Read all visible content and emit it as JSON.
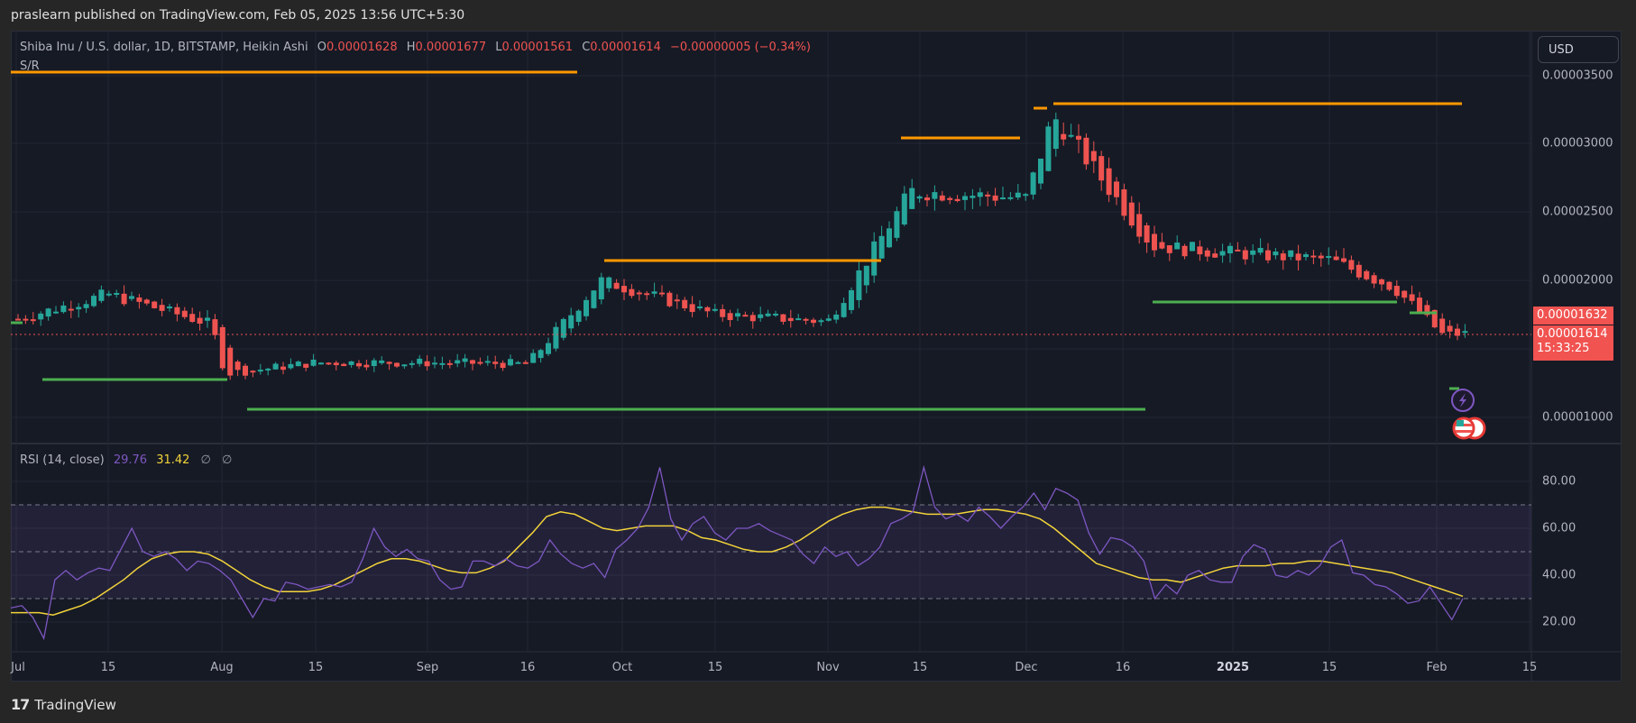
{
  "header": {
    "published": "praslearn published on TradingView.com, Feb 05, 2025 13:56 UTC+5:30"
  },
  "legend": {
    "symbol": "Shiba Inu / U.S. dollar, 1D, BITSTAMP, Heikin Ashi",
    "o_label": "O",
    "open": "0.00001628",
    "h_label": "H",
    "high": "0.00001677",
    "l_label": "L",
    "low": "0.00001561",
    "c_label": "C",
    "close": "0.00001614",
    "change": "−0.00000005 (−0.34%)",
    "indicator": "S/R"
  },
  "currency_button": "USD",
  "price_axis": {
    "labels": [
      "0.00003500",
      "0.00003000",
      "0.00002500",
      "0.00002000",
      "0.00001000"
    ],
    "tag_prev": "0.00001632",
    "tag_last": "0.00001614",
    "countdown": "15:33:25"
  },
  "rsi": {
    "title": "RSI (14, close)",
    "value": "29.76",
    "ma_value": "31.42",
    "null1": "∅",
    "null2": "∅",
    "axis_labels": [
      "80.00",
      "60.00",
      "40.00",
      "20.00"
    ]
  },
  "time_axis": [
    "Jul",
    "15",
    "Aug",
    "15",
    "Sep",
    "16",
    "Oct",
    "15",
    "Nov",
    "15",
    "Dec",
    "16",
    "2025",
    "15",
    "Feb",
    "15"
  ],
  "footer": {
    "logo": "17",
    "brand": "TradingView"
  },
  "colors": {
    "up": "#26a69a",
    "down": "#ef5350",
    "resistance": "#ff9800",
    "support": "#4caf50",
    "rsi": "#7e57c2",
    "rsi_ma": "#f2d33a",
    "bg": "#161a25"
  },
  "chart_data": {
    "type": "candlestick",
    "title": "Shiba Inu / U.S. dollar, 1D, BITSTAMP, Heikin Ashi",
    "x_ticks": [
      "Jul",
      "15",
      "Aug",
      "15",
      "Sep",
      "16",
      "Oct",
      "15",
      "Nov",
      "15",
      "Dec",
      "16",
      "2025",
      "15",
      "Feb",
      "15"
    ],
    "y_ticks": [
      3.5e-05,
      3e-05,
      2.5e-05,
      2e-05,
      1e-05
    ],
    "ylim": [
      8.7e-06,
      3.68e-05
    ],
    "last_close": 1.614e-05,
    "ohlc_last": {
      "open": 1.628e-05,
      "high": 1.677e-05,
      "low": 1.561e-05,
      "close": 1.614e-05
    },
    "approx_closes": [
      {
        "date": "Jul",
        "price": 1.72e-05
      },
      {
        "date": "Jul 15",
        "price": 1.9e-05
      },
      {
        "date": "Aug 1",
        "price": 1.68e-05
      },
      {
        "date": "Aug 5",
        "price": 1.32e-05
      },
      {
        "date": "Aug 15",
        "price": 1.4e-05
      },
      {
        "date": "Sep 1",
        "price": 1.4e-05
      },
      {
        "date": "Sep 16",
        "price": 1.39e-05
      },
      {
        "date": "Sep 28",
        "price": 2e-05
      },
      {
        "date": "Oct 15",
        "price": 1.75e-05
      },
      {
        "date": "Nov 1",
        "price": 1.7e-05
      },
      {
        "date": "Nov 12",
        "price": 2.65e-05
      },
      {
        "date": "Dec 1",
        "price": 2.6e-05
      },
      {
        "date": "Dec 8",
        "price": 3.2e-05
      },
      {
        "date": "Dec 20",
        "price": 2.25e-05
      },
      {
        "date": "2025",
        "price": 2.2e-05
      },
      {
        "date": "Jan 15",
        "price": 2.15e-05
      },
      {
        "date": "Jan 27",
        "price": 1.95e-05
      },
      {
        "date": "Feb 3",
        "price": 1.6e-05
      },
      {
        "date": "Feb 5",
        "price": 1.61e-05
      }
    ],
    "sr_lines": {
      "resistance": [
        {
          "from": "Jul",
          "to": "Aug 28",
          "price": 3.62e-05
        },
        {
          "from": "Sep 28",
          "to": "Nov 10",
          "price": 2.15e-05
        },
        {
          "from": "Nov 12",
          "to": "Nov 28",
          "price": 3.04e-05
        },
        {
          "from": "Dec 1",
          "to": "Dec 2",
          "price": 3.27e-05
        },
        {
          "from": "Dec 3",
          "to": "Jan 30",
          "price": 3.29e-05
        }
      ],
      "support": [
        {
          "from": "Jul 5",
          "to": "Aug 1",
          "price": 1.3e-05
        },
        {
          "from": "Aug 5",
          "to": "Dec 18",
          "price": 1.06e-05
        },
        {
          "from": "Dec 20",
          "to": "Jan 27",
          "price": 1.84e-05
        },
        {
          "from": "Jan 28",
          "to": "Jan 31",
          "price": 1.76e-05
        }
      ]
    },
    "indicator": {
      "type": "line",
      "name": "RSI (14, close)",
      "ylim": [
        10,
        92
      ],
      "bands": [
        30,
        50,
        70
      ],
      "rsi_last": 29.76,
      "ma_last": 31.42,
      "rsi_points": [
        26,
        27,
        22,
        13,
        38,
        42,
        38,
        41,
        43,
        42,
        51,
        60,
        50,
        48,
        50,
        47,
        42,
        46,
        45,
        42,
        38,
        30,
        22,
        30,
        29,
        37,
        36,
        34,
        35,
        36,
        35,
        37,
        47,
        60,
        52,
        48,
        51,
        47,
        46,
        38,
        34,
        35,
        46,
        46,
        44,
        47,
        44,
        43,
        46,
        55,
        49,
        45,
        43,
        45,
        39,
        51,
        55,
        60,
        69,
        86,
        64,
        55,
        62,
        65,
        58,
        55,
        60,
        60,
        62,
        59,
        57,
        55,
        49,
        45,
        52,
        48,
        50,
        44,
        47,
        52,
        62,
        64,
        67,
        86,
        69,
        64,
        66,
        63,
        69,
        65,
        60,
        65,
        69,
        75,
        68,
        77,
        75,
        72,
        58,
        49,
        56,
        55,
        52,
        46,
        30,
        36,
        32,
        40,
        42,
        38,
        37,
        37,
        48,
        53,
        51,
        40,
        39,
        42,
        40,
        44,
        52,
        55,
        41,
        40,
        36,
        35,
        32,
        28,
        29,
        35,
        28,
        21,
        30
      ],
      "ma_points": [
        24,
        24,
        24,
        23,
        25,
        27,
        30,
        34,
        38,
        43,
        47,
        49,
        50,
        50,
        49,
        46,
        42,
        38,
        35,
        33,
        33,
        33,
        34,
        36,
        39,
        42,
        45,
        47,
        47,
        46,
        44,
        42,
        41,
        41,
        43,
        46,
        52,
        58,
        65,
        67,
        66,
        63,
        60,
        59,
        60,
        61,
        61,
        61,
        59,
        56,
        55,
        53,
        51,
        50,
        50,
        52,
        55,
        59,
        63,
        66,
        68,
        69,
        69,
        68,
        67,
        66,
        66,
        66,
        67,
        68,
        68,
        67,
        66,
        64,
        60,
        55,
        50,
        45,
        43,
        41,
        39,
        38,
        38,
        37,
        39,
        41,
        43,
        44,
        44,
        44,
        45,
        45,
        46,
        46,
        45,
        44,
        43,
        42,
        41,
        39,
        37,
        35,
        33,
        31
      ]
    }
  }
}
